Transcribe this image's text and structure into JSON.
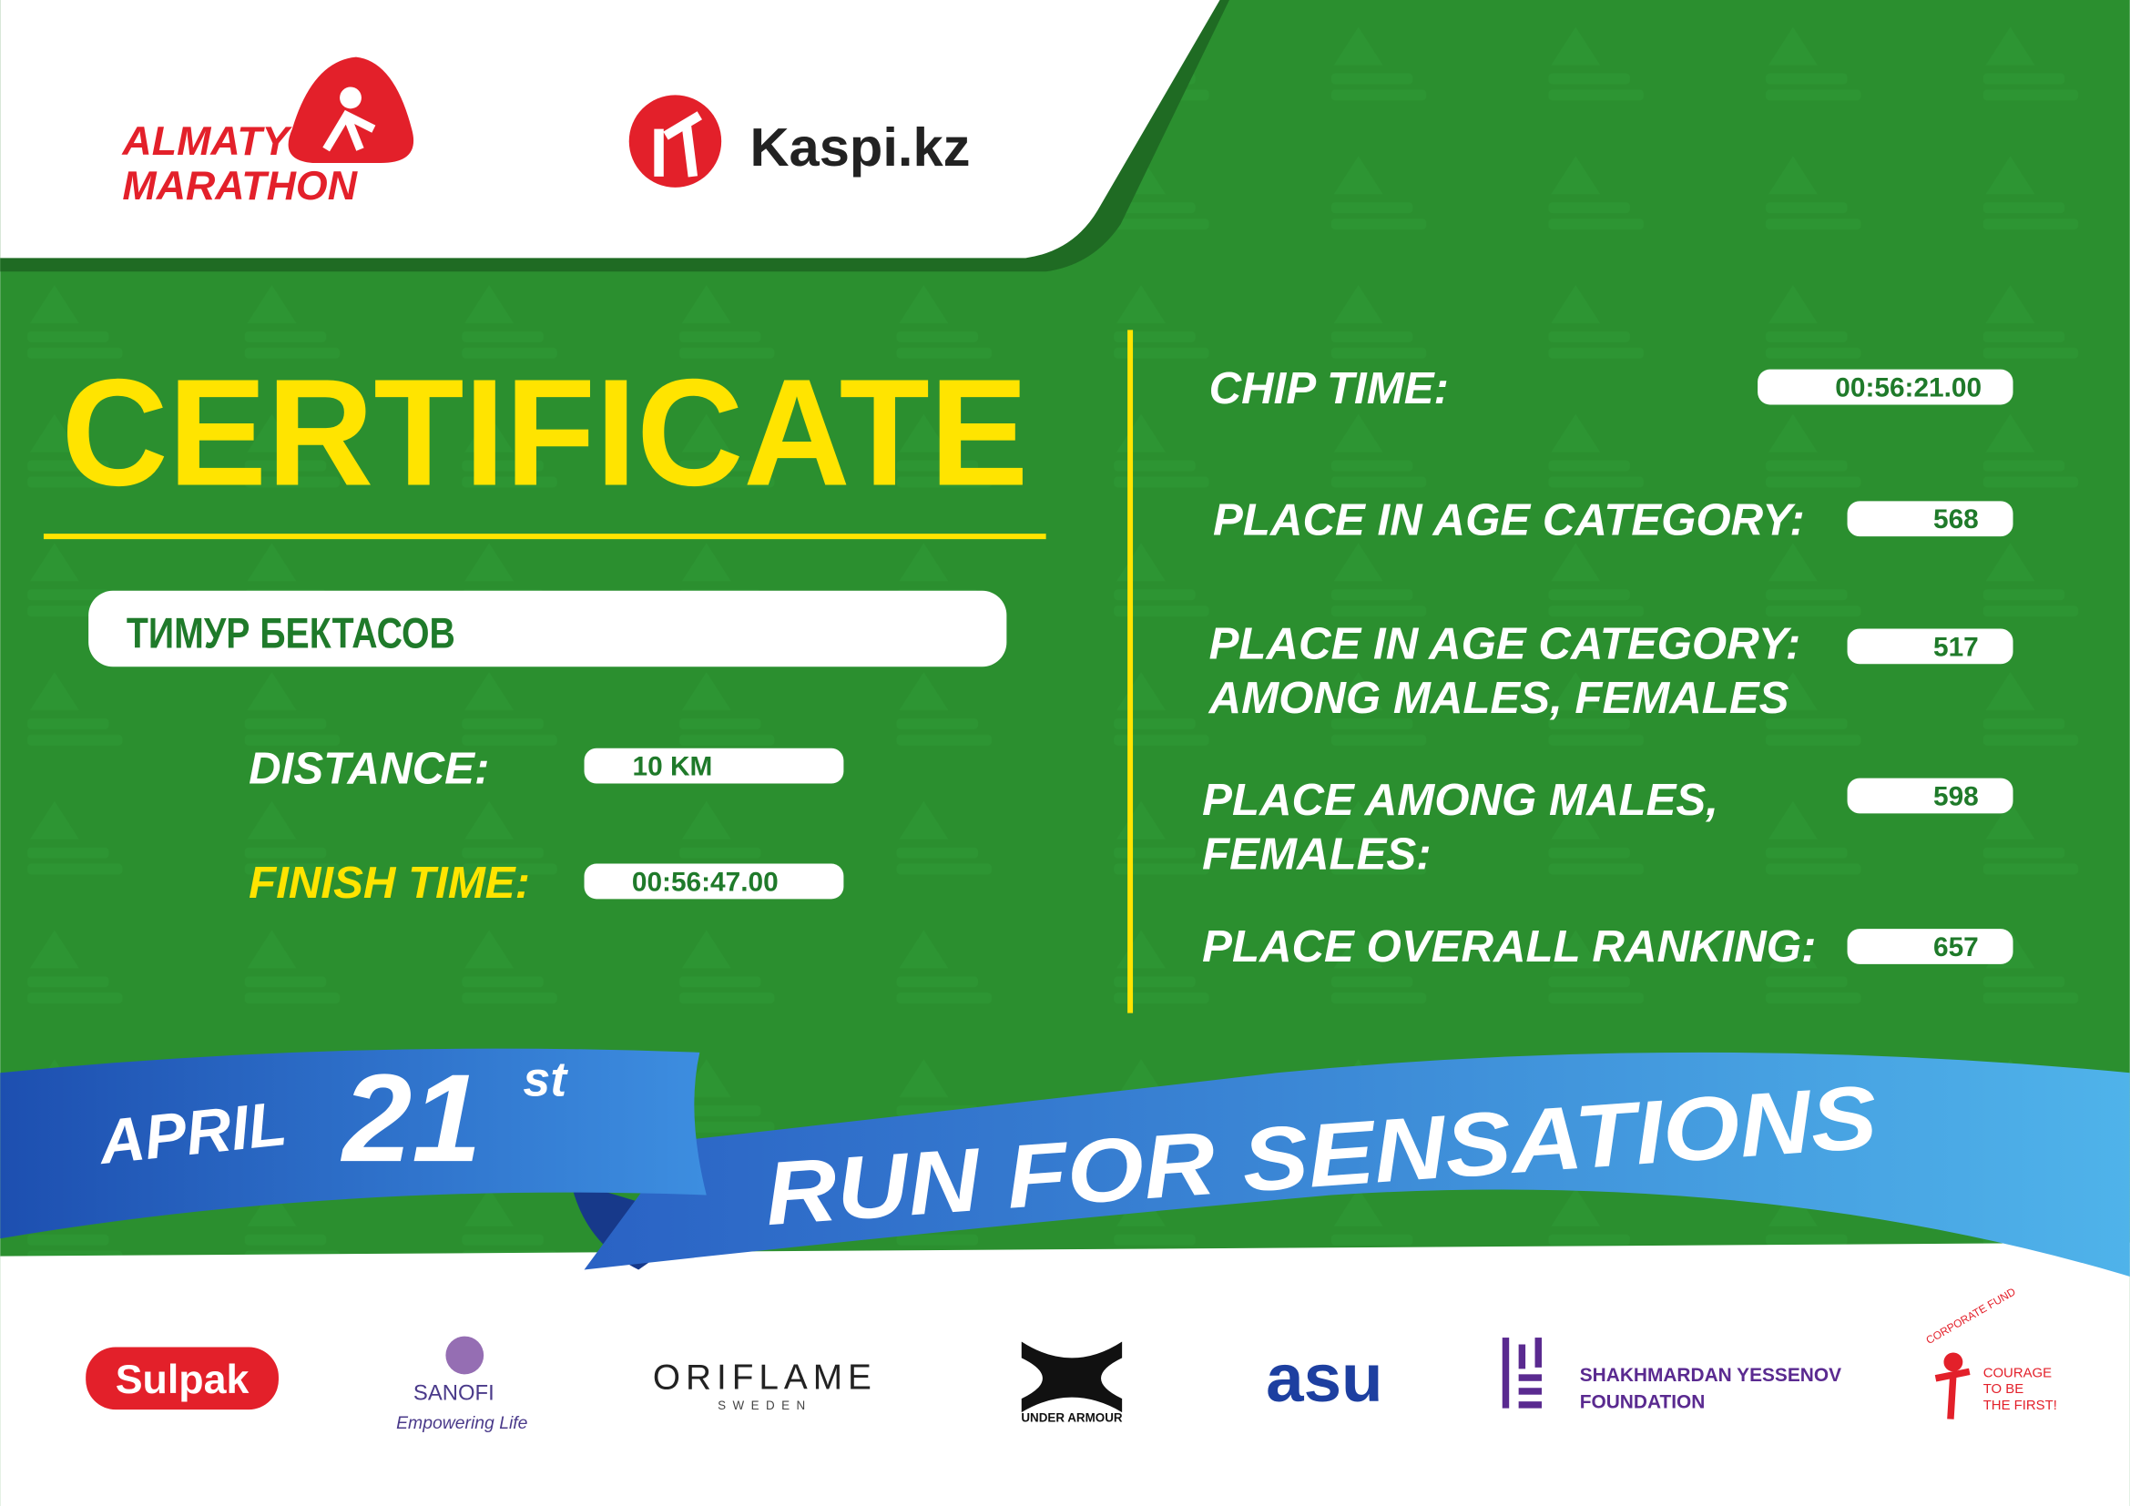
{
  "header": {
    "logo_line1": "ALMATY",
    "logo_line2": "MARATHON",
    "partner": "Kaspi.kz"
  },
  "certificate": {
    "title": "CERTIFICATE",
    "name": "ТИМУР БЕКТАСОВ",
    "fields": [
      {
        "label": "DISTANCE:",
        "value": "10 KM"
      },
      {
        "label": "FINISH TIME:",
        "value": "00:56:47.00"
      }
    ]
  },
  "results": [
    {
      "label": [
        "CHIP TIME:"
      ],
      "value": "00:56:21.00"
    },
    {
      "label": [
        "PLACE IN AGE CATEGORY:"
      ],
      "value": 568
    },
    {
      "label": [
        "PLACE IN AGE CATEGORY:",
        "AMONG MALES, FEMALES"
      ],
      "value": 517
    },
    {
      "label": [
        "PLACE AMONG MALES,",
        "FEMALES:"
      ],
      "value": 598
    },
    {
      "label": [
        "PLACE OVERALL RANKING:"
      ],
      "value": 657
    }
  ],
  "banner": {
    "month": "APRIL",
    "day": "21",
    "suffix": "st",
    "slogan": "RUN FOR SENSATIONS"
  },
  "sponsors": {
    "sulpak": "Sulpak",
    "sanofi": "SANOFI",
    "sanofi_tagline": "Empowering Life",
    "oriflame": "ORIFLAME",
    "oriflame_sub": "SWEDEN",
    "under_armour": "UNDER ARMOUR",
    "asu": "asu",
    "yessenov": [
      "SHAKHMARDAN YESSENOV",
      "FOUNDATION"
    ],
    "courage": [
      "COURAGE",
      "TO BE",
      "THE FIRST!"
    ],
    "courage_arc": "CORPORATE FUND"
  }
}
